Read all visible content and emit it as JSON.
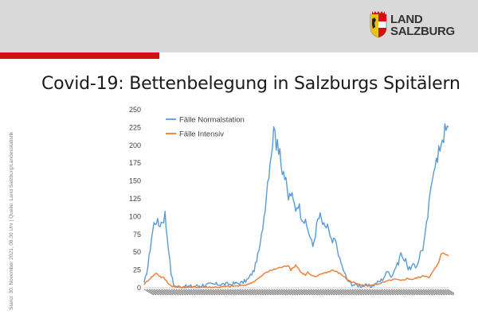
{
  "logo": {
    "line1": "LAND",
    "line2": "SALZBURG"
  },
  "title": "Covid-19: Bettenbelegung in Salzburgs Spitälern",
  "side_note": "Stand: 30. November 2021, 08.30 Uhr | Quelle: Land Salzburg/Landesstatistik",
  "colors": {
    "normal": "#5b9bd5",
    "intensive": "#ed7d31",
    "header_bg": "#d9d9d9",
    "accent_red": "#d40f14"
  },
  "chart_data": {
    "type": "line",
    "title": "",
    "xlabel": "",
    "ylabel": "",
    "ylim": [
      0,
      250
    ],
    "yticks": [
      0,
      25,
      50,
      75,
      100,
      125,
      150,
      175,
      200,
      225,
      250
    ],
    "legend_position": "top-left",
    "x_count": 250,
    "series": [
      {
        "name": "Fälle Normalstation",
        "color": "#5b9bd5",
        "anchors": [
          [
            0,
            5
          ],
          [
            3,
            30
          ],
          [
            6,
            70
          ],
          [
            8,
            90
          ],
          [
            10,
            95
          ],
          [
            12,
            88
          ],
          [
            14,
            92
          ],
          [
            16,
            97
          ],
          [
            17,
            104
          ],
          [
            18,
            85
          ],
          [
            20,
            55
          ],
          [
            22,
            20
          ],
          [
            24,
            5
          ],
          [
            26,
            2
          ],
          [
            30,
            1
          ],
          [
            40,
            2
          ],
          [
            50,
            4
          ],
          [
            60,
            5
          ],
          [
            70,
            5
          ],
          [
            80,
            7
          ],
          [
            85,
            12
          ],
          [
            90,
            25
          ],
          [
            95,
            60
          ],
          [
            98,
            100
          ],
          [
            101,
            150
          ],
          [
            104,
            195
          ],
          [
            106,
            218
          ],
          [
            107,
            235
          ],
          [
            108,
            205
          ],
          [
            110,
            185
          ],
          [
            111,
            210
          ],
          [
            112,
            175
          ],
          [
            114,
            165
          ],
          [
            116,
            145
          ],
          [
            118,
            125
          ],
          [
            120,
            133
          ],
          [
            122,
            120
          ],
          [
            124,
            112
          ],
          [
            126,
            120
          ],
          [
            128,
            105
          ],
          [
            130,
            98
          ],
          [
            132,
            90
          ],
          [
            134,
            82
          ],
          [
            136,
            70
          ],
          [
            138,
            58
          ],
          [
            140,
            75
          ],
          [
            142,
            95
          ],
          [
            144,
            100
          ],
          [
            146,
            90
          ],
          [
            148,
            82
          ],
          [
            150,
            90
          ],
          [
            152,
            70
          ],
          [
            154,
            63
          ],
          [
            156,
            68
          ],
          [
            158,
            55
          ],
          [
            160,
            40
          ],
          [
            162,
            30
          ],
          [
            164,
            20
          ],
          [
            166,
            12
          ],
          [
            168,
            7
          ],
          [
            172,
            4
          ],
          [
            180,
            3
          ],
          [
            185,
            2
          ],
          [
            190,
            6
          ],
          [
            195,
            12
          ],
          [
            198,
            20
          ],
          [
            200,
            25
          ],
          [
            202,
            15
          ],
          [
            204,
            22
          ],
          [
            206,
            30
          ],
          [
            208,
            35
          ],
          [
            210,
            50
          ],
          [
            212,
            38
          ],
          [
            214,
            42
          ],
          [
            216,
            26
          ],
          [
            218,
            28
          ],
          [
            220,
            32
          ],
          [
            222,
            28
          ],
          [
            224,
            35
          ],
          [
            226,
            50
          ],
          [
            228,
            55
          ],
          [
            230,
            75
          ],
          [
            232,
            100
          ],
          [
            234,
            130
          ],
          [
            236,
            165
          ],
          [
            238,
            180
          ],
          [
            240,
            175
          ],
          [
            242,
            200
          ],
          [
            244,
            215
          ],
          [
            246,
            218
          ],
          [
            249,
            220
          ]
        ]
      },
      {
        "name": "Fälle Intensiv",
        "color": "#ed7d31",
        "anchors": [
          [
            0,
            5
          ],
          [
            4,
            12
          ],
          [
            8,
            18
          ],
          [
            10,
            21
          ],
          [
            12,
            17
          ],
          [
            14,
            15
          ],
          [
            16,
            14
          ],
          [
            18,
            10
          ],
          [
            20,
            6
          ],
          [
            22,
            3
          ],
          [
            26,
            1
          ],
          [
            40,
            1
          ],
          [
            60,
            1
          ],
          [
            70,
            2
          ],
          [
            80,
            3
          ],
          [
            85,
            5
          ],
          [
            90,
            9
          ],
          [
            95,
            15
          ],
          [
            100,
            22
          ],
          [
            105,
            25
          ],
          [
            110,
            28
          ],
          [
            115,
            30
          ],
          [
            118,
            32
          ],
          [
            120,
            25
          ],
          [
            122,
            28
          ],
          [
            124,
            32
          ],
          [
            126,
            28
          ],
          [
            128,
            22
          ],
          [
            130,
            20
          ],
          [
            132,
            18
          ],
          [
            134,
            22
          ],
          [
            136,
            18
          ],
          [
            140,
            15
          ],
          [
            145,
            20
          ],
          [
            150,
            22
          ],
          [
            154,
            25
          ],
          [
            158,
            22
          ],
          [
            162,
            18
          ],
          [
            166,
            12
          ],
          [
            170,
            8
          ],
          [
            175,
            5
          ],
          [
            180,
            3
          ],
          [
            185,
            3
          ],
          [
            190,
            5
          ],
          [
            195,
            7
          ],
          [
            200,
            10
          ],
          [
            205,
            12
          ],
          [
            210,
            10
          ],
          [
            215,
            13
          ],
          [
            220,
            12
          ],
          [
            225,
            15
          ],
          [
            230,
            17
          ],
          [
            233,
            15
          ],
          [
            236,
            22
          ],
          [
            239,
            30
          ],
          [
            241,
            35
          ],
          [
            243,
            48
          ],
          [
            245,
            50
          ],
          [
            247,
            46
          ],
          [
            249,
            45
          ]
        ]
      }
    ]
  }
}
